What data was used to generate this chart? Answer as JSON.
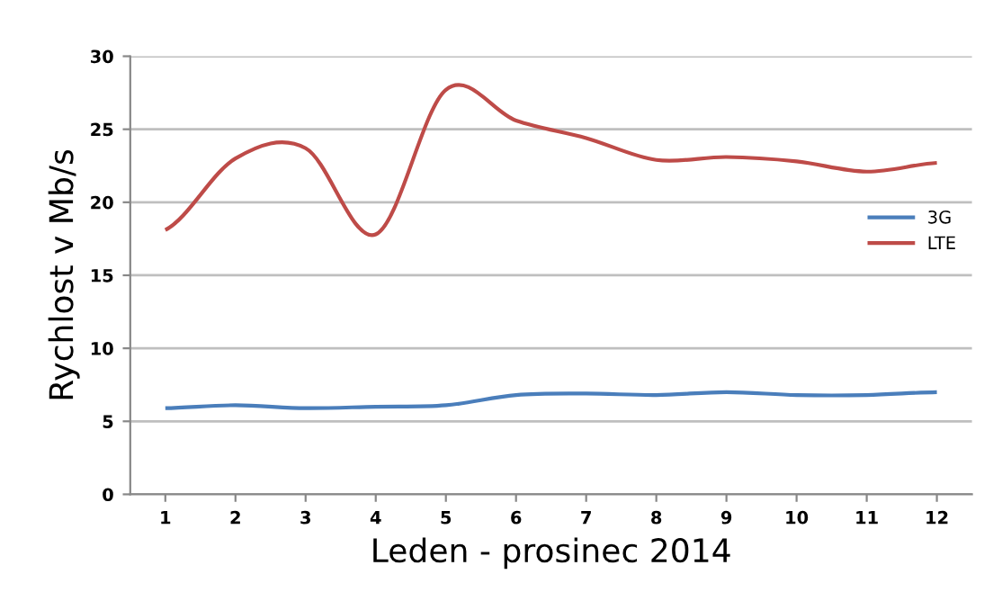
{
  "chart_data": {
    "type": "line",
    "xlabel": "Leden - prosinec 2014",
    "ylabel": "Rychlost v Mb/s",
    "categories": [
      "1",
      "2",
      "3",
      "4",
      "5",
      "6",
      "7",
      "8",
      "9",
      "10",
      "11",
      "12"
    ],
    "series": [
      {
        "name": "3G",
        "color": "#4a7ebb",
        "values": [
          5.9,
          6.1,
          5.9,
          6.0,
          6.1,
          6.8,
          6.9,
          6.8,
          7.0,
          6.8,
          6.8,
          7.0
        ]
      },
      {
        "name": "LTE",
        "color": "#be4b48",
        "values": [
          18.1,
          23.0,
          23.7,
          17.8,
          27.7,
          25.6,
          24.4,
          22.9,
          23.1,
          22.8,
          22.1,
          22.7
        ]
      }
    ],
    "ylim": [
      0,
      30
    ],
    "yticks": [
      0,
      5,
      10,
      15,
      20,
      25,
      30
    ],
    "grid": "y",
    "legend": "right",
    "marker": "none",
    "line_style": "solid"
  }
}
